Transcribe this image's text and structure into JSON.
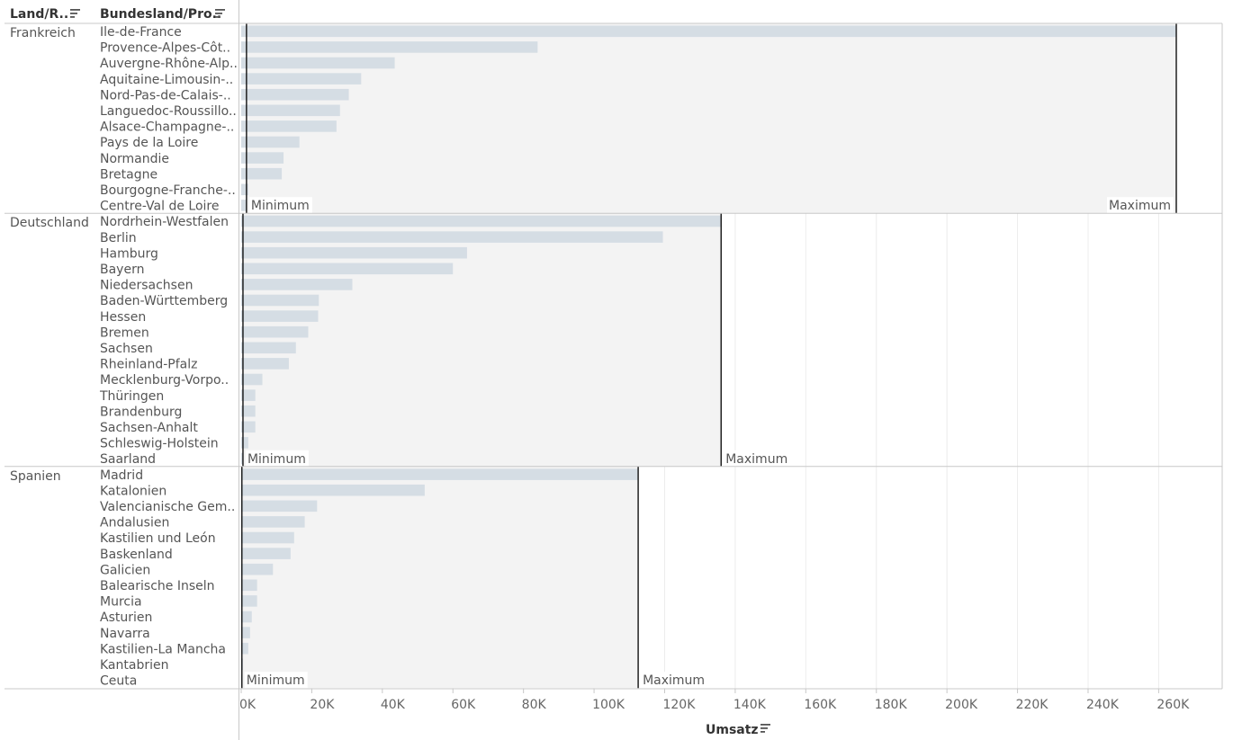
{
  "headers": {
    "col1": "Land/R..",
    "col2": "Bundesland/Pro..",
    "x_field": "Umsatz"
  },
  "icons": {
    "sort": "sort-descending-icon"
  },
  "chart_data": {
    "type": "bar",
    "orientation": "horizontal",
    "xlabel": "Umsatz",
    "xlim": [
      0,
      275000
    ],
    "x_ticks": [
      0,
      20000,
      40000,
      60000,
      80000,
      100000,
      120000,
      140000,
      160000,
      180000,
      200000,
      220000,
      240000,
      260000
    ],
    "x_tick_labels": [
      "0K",
      "20K",
      "40K",
      "60K",
      "80K",
      "100K",
      "120K",
      "140K",
      "160K",
      "180K",
      "200K",
      "220K",
      "240K",
      "260K"
    ],
    "grid": true,
    "bar_color": "#d5dde4",
    "band_color": "#f3f3f3",
    "reference_line_color": "#000000",
    "groups": [
      {
        "name": "Frankreich",
        "band_labels": [
          "Minimum",
          "Maximum"
        ],
        "categories": [
          "Ile-de-France",
          "Provence-Alpes-Côt..",
          "Auvergne-Rhône-Alp..",
          "Aquitaine-Limousin-..",
          "Nord-Pas-de-Calais-..",
          "Languedoc-Roussillo..",
          "Alsace-Champagne-..",
          "Pays de la Loire",
          "Normandie",
          "Bretagne",
          "Bourgogne-Franche-..",
          "Centre-Val de Loire"
        ],
        "values": [
          265000,
          84000,
          43500,
          34000,
          30500,
          28000,
          27000,
          16500,
          12000,
          11500,
          2000,
          1500
        ],
        "min": 1500,
        "max": 265000
      },
      {
        "name": "Deutschland",
        "band_labels": [
          "Minimum",
          "Maximum"
        ],
        "categories": [
          "Nordrhein-Westfalen",
          "Berlin",
          "Hamburg",
          "Bayern",
          "Niedersachsen",
          "Baden-Württemberg",
          "Hessen",
          "Bremen",
          "Sachsen",
          "Rheinland-Pfalz",
          "Mecklenburg-Vorpo..",
          "Thüringen",
          "Brandenburg",
          "Sachsen-Anhalt",
          "Schleswig-Holstein",
          "Saarland"
        ],
        "values": [
          136000,
          119500,
          64000,
          60000,
          31500,
          22000,
          21800,
          19000,
          15500,
          13500,
          6000,
          4000,
          4000,
          4000,
          2000,
          500
        ],
        "min": 500,
        "max": 136000
      },
      {
        "name": "Spanien",
        "band_labels": [
          "Minimum",
          "Maximum"
        ],
        "categories": [
          "Madrid",
          "Katalonien",
          "Valencianische Gem..",
          "Andalusien",
          "Kastilien und León",
          "Baskenland",
          "Galicien",
          "Balearische Inseln",
          "Murcia",
          "Asturien",
          "Navarra",
          "Kastilien-La Mancha",
          "Kantabrien",
          "Ceuta"
        ],
        "values": [
          112500,
          52000,
          21500,
          18000,
          15000,
          14000,
          9000,
          4500,
          4500,
          3000,
          2500,
          2000,
          500,
          200
        ],
        "min": 200,
        "max": 112500
      }
    ]
  }
}
